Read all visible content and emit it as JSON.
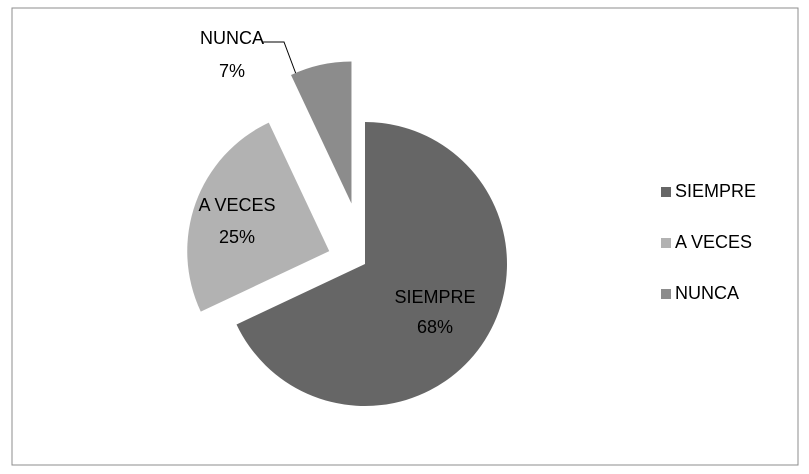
{
  "chart_data": {
    "type": "pie",
    "categories": [
      "SIEMPRE",
      "A VECES",
      "NUNCA"
    ],
    "values": [
      68,
      25,
      7
    ],
    "value_labels": [
      "68%",
      "25%",
      "7%"
    ],
    "colors": [
      "#666666",
      "#b2b2b2",
      "#8c8c8c"
    ],
    "legend": "right"
  }
}
